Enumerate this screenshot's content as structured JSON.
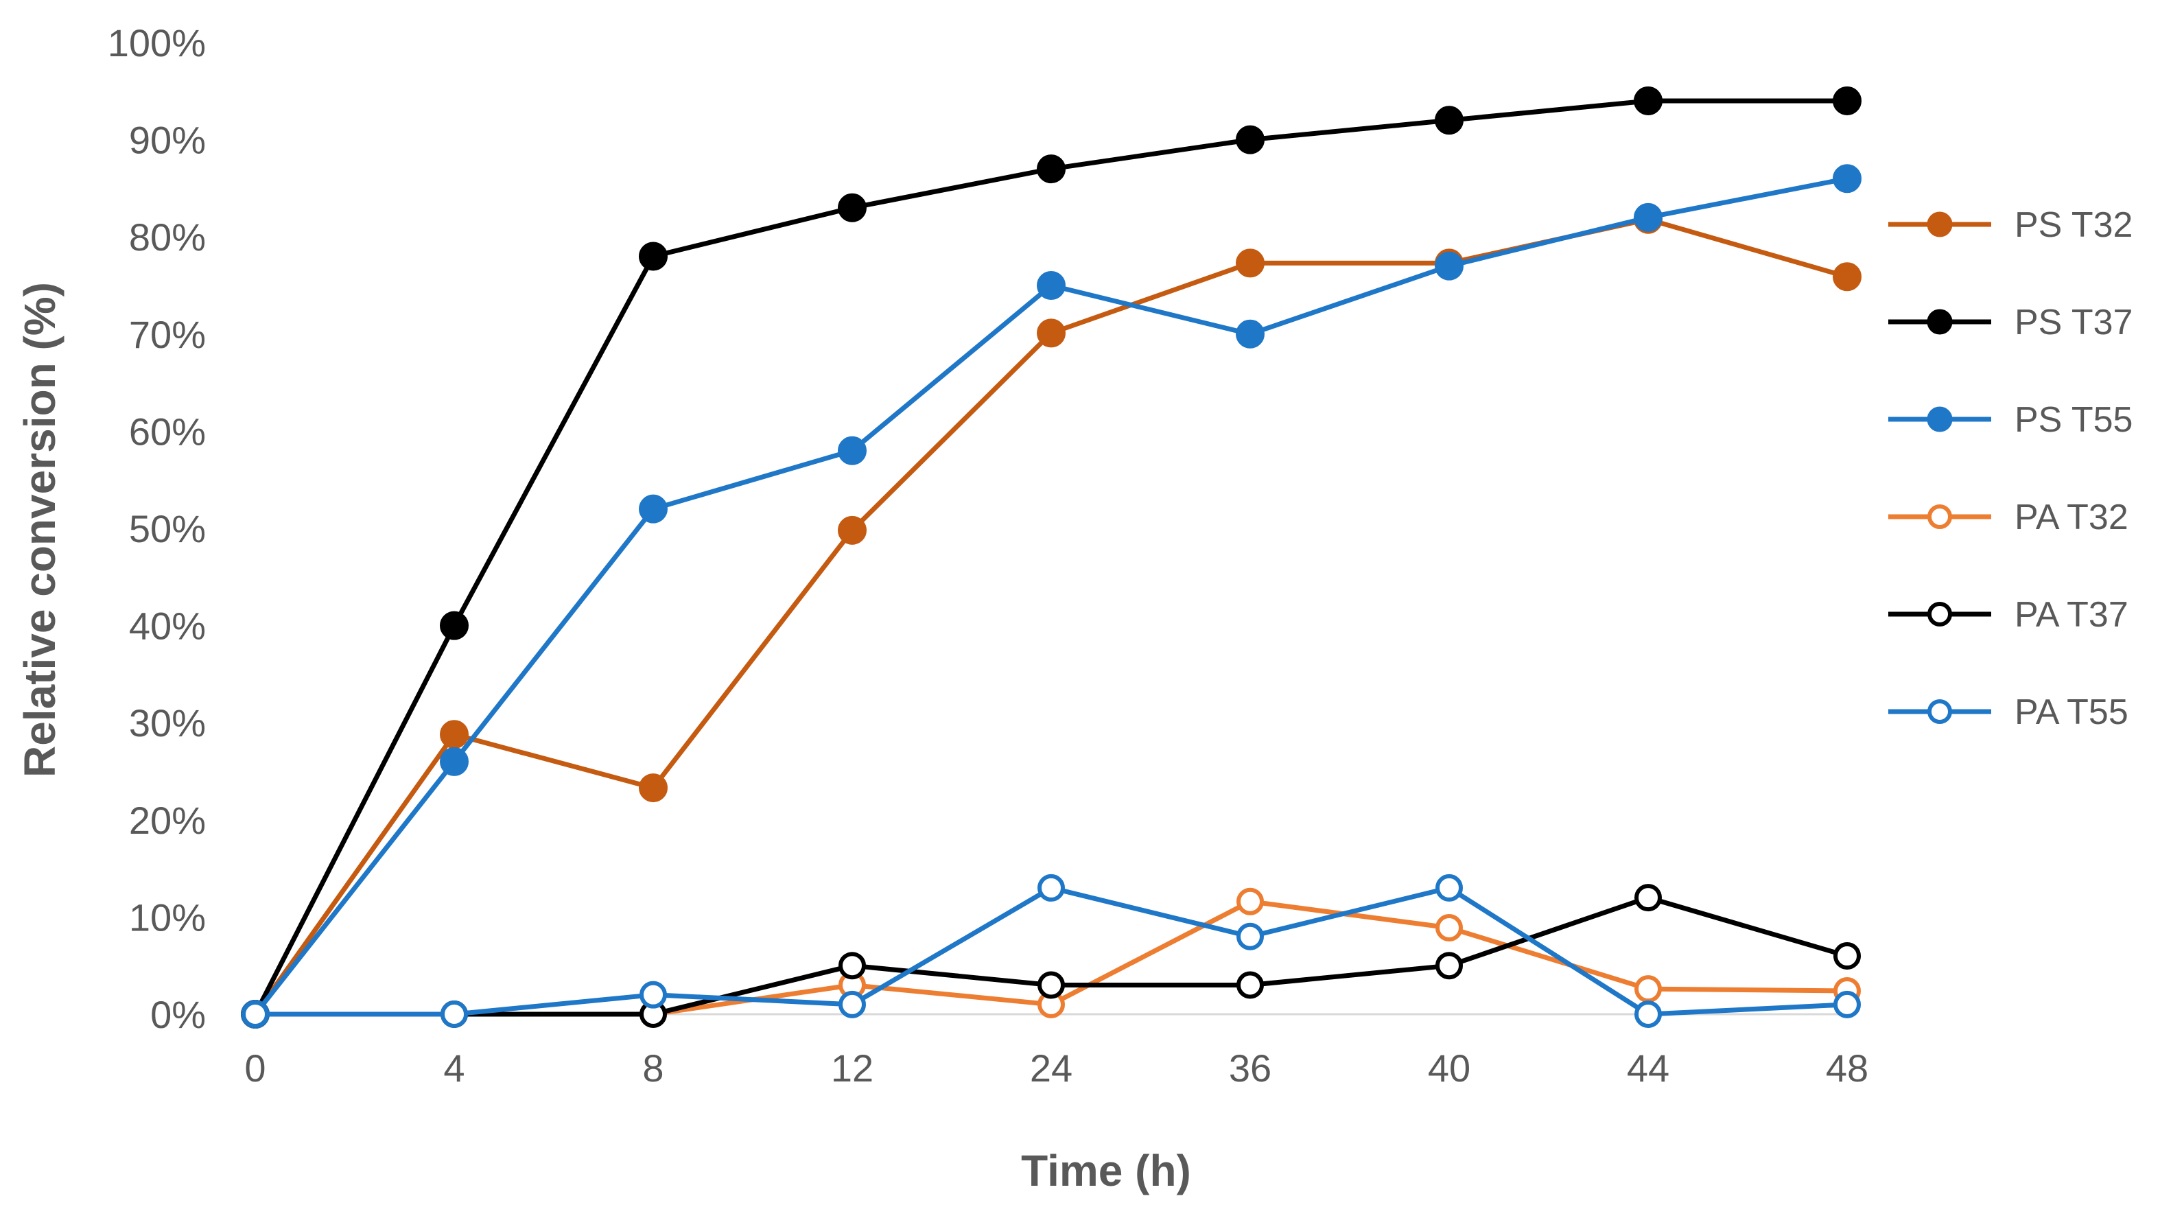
{
  "chart_data": {
    "type": "line",
    "title": "",
    "xlabel": "Time (h)",
    "ylabel": "Relative conversion (%)",
    "categories": [
      "0",
      "4",
      "8",
      "12",
      "24",
      "36",
      "40",
      "44",
      "48"
    ],
    "ylim": [
      0,
      100
    ],
    "yticks": [
      "0%",
      "10%",
      "20%",
      "30%",
      "40%",
      "50%",
      "60%",
      "70%",
      "80%",
      "90%",
      "100%"
    ],
    "grid": false,
    "legend_position": "right",
    "series": [
      {
        "name": "PS T32",
        "color": "#C55A11",
        "marker": "filled",
        "values": [
          0,
          28.8,
          23.3,
          49.8,
          70.1,
          77.3,
          77.3,
          81.8,
          75.9
        ]
      },
      {
        "name": "PS T37",
        "color": "#000000",
        "marker": "filled",
        "values": [
          0,
          40,
          78,
          83,
          87,
          90,
          92,
          94,
          94
        ]
      },
      {
        "name": "PS T55",
        "color": "#1F77C8",
        "marker": "filled",
        "values": [
          0,
          26,
          52,
          58,
          75,
          70,
          77,
          82,
          86
        ]
      },
      {
        "name": "PA T32",
        "color": "#ED7D31",
        "marker": "open",
        "values": [
          0,
          0,
          0,
          3,
          1,
          11.6,
          8.9,
          2.6,
          2.4
        ]
      },
      {
        "name": "PA T37",
        "color": "#000000",
        "marker": "open",
        "values": [
          0,
          0,
          0,
          5,
          3,
          3,
          5,
          12,
          6
        ]
      },
      {
        "name": "PA T55",
        "color": "#1F77C8",
        "marker": "open",
        "values": [
          0,
          0,
          2,
          1,
          13,
          8,
          13,
          0,
          1
        ]
      }
    ]
  }
}
